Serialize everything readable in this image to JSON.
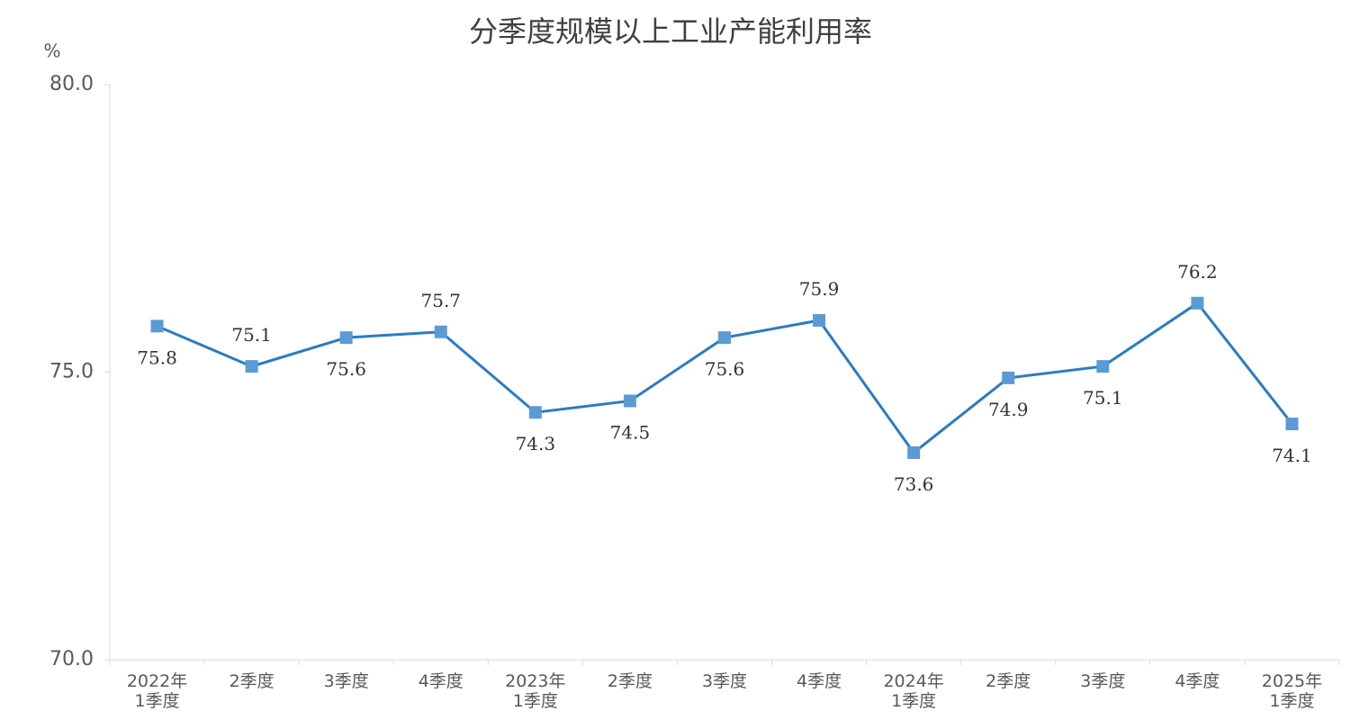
{
  "chart_data": {
    "type": "line",
    "title": "分季度规模以上工业产能利用率",
    "y_label": "%",
    "categories": [
      "2022年\n1季度",
      "2季度",
      "3季度",
      "4季度",
      "2023年\n1季度",
      "2季度",
      "3季度",
      "4季度",
      "2024年\n1季度",
      "2季度",
      "3季度",
      "4季度",
      "2025年\n1季度"
    ],
    "series": [
      {
        "name": "产能利用率",
        "color": "#2a7bc4",
        "marker_color": "#5b9bd5",
        "values": [
          75.8,
          75.1,
          75.6,
          75.7,
          74.3,
          74.5,
          75.6,
          75.9,
          73.6,
          74.9,
          75.1,
          76.2,
          74.1
        ]
      }
    ],
    "ylim": [
      70,
      80
    ],
    "yticks": [
      {
        "value": 70,
        "label": "70.0"
      },
      {
        "value": 75,
        "label": "75.0"
      },
      {
        "value": 80,
        "label": "80.0"
      }
    ],
    "grid": false
  }
}
